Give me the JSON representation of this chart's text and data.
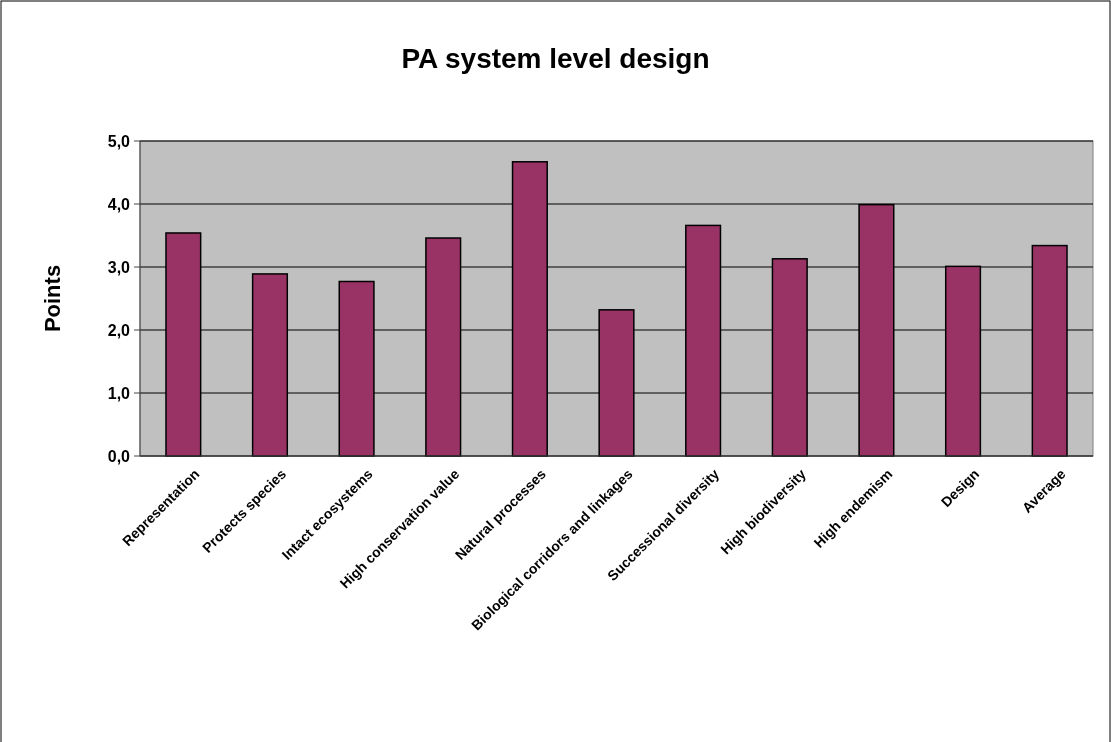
{
  "chart_data": {
    "type": "bar",
    "title": "PA system level design",
    "ylabel": "Points",
    "categories": [
      "Representation",
      "Protects species",
      "Intact ecosystems",
      "High conservation value",
      "Natural processes",
      "Biological corridors and linkages",
      "Successional diversity",
      "High biodiversity",
      "High endemism",
      "Design",
      "Average"
    ],
    "values": [
      3.54,
      2.89,
      2.77,
      3.46,
      4.67,
      2.32,
      3.66,
      3.13,
      3.99,
      3.01,
      3.34
    ],
    "color": "#993366",
    "ylim": [
      0,
      5
    ],
    "yticks": [
      {
        "value": 0,
        "label": "0,0"
      },
      {
        "value": 1,
        "label": "1,0"
      },
      {
        "value": 2,
        "label": "2,0"
      },
      {
        "value": 3,
        "label": "3,0"
      },
      {
        "value": 4,
        "label": "4,0"
      },
      {
        "value": 5,
        "label": "5,0"
      }
    ],
    "grid": "y"
  }
}
